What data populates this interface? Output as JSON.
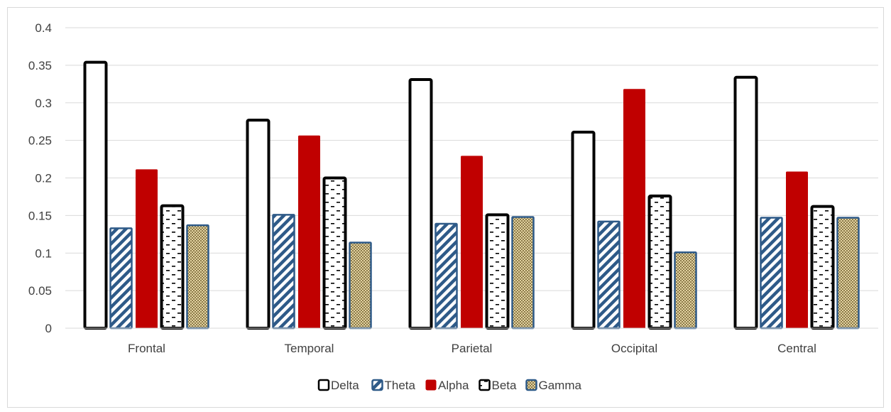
{
  "chart_data": {
    "type": "bar",
    "title": "",
    "xlabel": "",
    "ylabel": "",
    "ylim": [
      0,
      0.4
    ],
    "yticks": [
      0,
      0.05,
      0.1,
      0.15,
      0.2,
      0.25,
      0.3,
      0.35,
      0.4
    ],
    "ytick_labels": [
      "0",
      "0.05",
      "0.1",
      "0.15",
      "0.2",
      "0.25",
      "0.3",
      "0.35",
      "0.4"
    ],
    "grid": true,
    "legend_position": "bottom",
    "categories": [
      "Frontal",
      "Temporal",
      "Parietal",
      "Occipital",
      "Central"
    ],
    "series": [
      {
        "name": "Delta",
        "values": [
          0.354,
          0.277,
          0.331,
          0.261,
          0.334
        ],
        "pattern": "outline",
        "color": "#000000"
      },
      {
        "name": "Theta",
        "values": [
          0.133,
          0.151,
          0.139,
          0.142,
          0.147
        ],
        "pattern": "diagonal",
        "color": "#2e5a88"
      },
      {
        "name": "Alpha",
        "values": [
          0.211,
          0.256,
          0.229,
          0.318,
          0.208
        ],
        "pattern": "solid",
        "color": "#c00000"
      },
      {
        "name": "Beta",
        "values": [
          0.163,
          0.2,
          0.151,
          0.176,
          0.162
        ],
        "pattern": "dashes",
        "color": "#000000"
      },
      {
        "name": "Gamma",
        "values": [
          0.137,
          0.114,
          0.148,
          0.101,
          0.147
        ],
        "pattern": "checker",
        "color": "#2e5a88"
      }
    ]
  }
}
